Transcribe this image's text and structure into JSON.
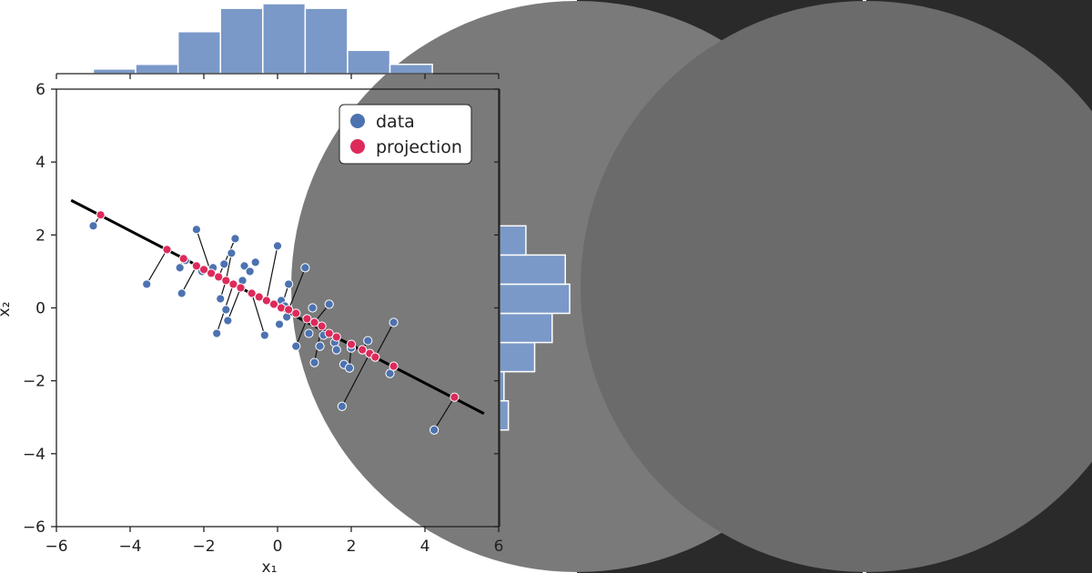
{
  "chart_data": {
    "type": "scatter",
    "xlabel": "x₁",
    "ylabel": "x₂",
    "xlim": [
      -6,
      6
    ],
    "ylim": [
      -6,
      6
    ],
    "xticks": [
      -6,
      -4,
      -2,
      0,
      2,
      4,
      6
    ],
    "yticks": [
      -6,
      -4,
      -2,
      0,
      2,
      4,
      6
    ],
    "tick_labels": [
      "−6",
      "−4",
      "−2",
      "0",
      "2",
      "4",
      "6"
    ],
    "regression_line": {
      "x": [
        -5.6,
        5.6
      ],
      "y": [
        2.95,
        -2.9
      ]
    },
    "legend": {
      "position": "top-right",
      "entries": [
        {
          "label": "data",
          "color": "#4c72b0"
        },
        {
          "label": "projection",
          "color": "#dd2a5b"
        }
      ]
    },
    "series": [
      {
        "name": "data",
        "color": "#4c72b0",
        "points": [
          [
            -5.0,
            2.25
          ],
          [
            -3.55,
            0.65
          ],
          [
            -2.65,
            1.1
          ],
          [
            -2.6,
            0.4
          ],
          [
            -2.5,
            1.3
          ],
          [
            -2.2,
            2.15
          ],
          [
            -2.05,
            1.0
          ],
          [
            -1.75,
            1.1
          ],
          [
            -1.65,
            -0.7
          ],
          [
            -1.55,
            0.25
          ],
          [
            -1.45,
            1.2
          ],
          [
            -1.4,
            -0.05
          ],
          [
            -1.35,
            -0.35
          ],
          [
            -1.25,
            1.5
          ],
          [
            -1.15,
            1.9
          ],
          [
            -0.95,
            0.75
          ],
          [
            -0.9,
            1.15
          ],
          [
            -0.75,
            1.0
          ],
          [
            -0.6,
            1.25
          ],
          [
            -0.35,
            -0.75
          ],
          [
            0.0,
            1.7
          ],
          [
            0.05,
            -0.45
          ],
          [
            0.1,
            0.2
          ],
          [
            0.2,
            0.05
          ],
          [
            0.25,
            -0.25
          ],
          [
            0.3,
            0.65
          ],
          [
            0.5,
            -1.05
          ],
          [
            0.75,
            1.1
          ],
          [
            0.85,
            -0.7
          ],
          [
            0.95,
            0.0
          ],
          [
            1.0,
            -1.5
          ],
          [
            1.15,
            -1.05
          ],
          [
            1.25,
            -0.75
          ],
          [
            1.4,
            0.1
          ],
          [
            1.55,
            -0.95
          ],
          [
            1.6,
            -1.15
          ],
          [
            1.75,
            -2.7
          ],
          [
            1.8,
            -1.55
          ],
          [
            1.95,
            -1.65
          ],
          [
            2.0,
            -1.1
          ],
          [
            2.45,
            -0.9
          ],
          [
            3.05,
            -1.8
          ],
          [
            3.15,
            -0.4
          ],
          [
            4.25,
            -3.35
          ]
        ]
      },
      {
        "name": "projection",
        "color": "#dd2a5b",
        "points": [
          [
            -4.8,
            2.55
          ],
          [
            -3.0,
            1.6
          ],
          [
            -2.55,
            1.35
          ],
          [
            -2.2,
            1.15
          ],
          [
            -2.0,
            1.05
          ],
          [
            -1.8,
            0.95
          ],
          [
            -1.6,
            0.85
          ],
          [
            -1.4,
            0.75
          ],
          [
            -1.2,
            0.65
          ],
          [
            -1.0,
            0.55
          ],
          [
            -0.7,
            0.4
          ],
          [
            -0.5,
            0.3
          ],
          [
            -0.3,
            0.2
          ],
          [
            -0.1,
            0.1
          ],
          [
            0.1,
            0.0
          ],
          [
            0.3,
            -0.05
          ],
          [
            0.5,
            -0.15
          ],
          [
            0.8,
            -0.3
          ],
          [
            1.0,
            -0.4
          ],
          [
            1.2,
            -0.5
          ],
          [
            1.4,
            -0.7
          ],
          [
            1.6,
            -0.8
          ],
          [
            2.0,
            -1.0
          ],
          [
            2.3,
            -1.15
          ],
          [
            2.5,
            -1.25
          ],
          [
            2.65,
            -1.35
          ],
          [
            3.15,
            -1.6
          ],
          [
            4.8,
            -2.45
          ]
        ]
      }
    ],
    "projection_links": [
      [
        [
          -5.0,
          2.25
        ],
        [
          -4.8,
          2.55
        ]
      ],
      [
        [
          -3.55,
          0.65
        ],
        [
          -3.0,
          1.6
        ]
      ],
      [
        [
          -2.6,
          0.4
        ],
        [
          -2.2,
          1.15
        ]
      ],
      [
        [
          -2.65,
          1.1
        ],
        [
          -2.55,
          1.35
        ]
      ],
      [
        [
          -2.2,
          2.15
        ],
        [
          -1.8,
          0.95
        ]
      ],
      [
        [
          -1.65,
          -0.7
        ],
        [
          -1.2,
          0.65
        ]
      ],
      [
        [
          -1.55,
          0.25
        ],
        [
          -1.4,
          0.75
        ]
      ],
      [
        [
          -1.35,
          -0.35
        ],
        [
          -1.0,
          0.55
        ]
      ],
      [
        [
          -1.15,
          1.9
        ],
        [
          -1.6,
          0.85
        ]
      ],
      [
        [
          -1.25,
          1.5
        ],
        [
          -1.4,
          0.75
        ]
      ],
      [
        [
          -0.35,
          -0.75
        ],
        [
          -0.7,
          0.4
        ]
      ],
      [
        [
          0.0,
          1.7
        ],
        [
          -0.3,
          0.2
        ]
      ],
      [
        [
          0.3,
          0.65
        ],
        [
          0.1,
          0.0
        ]
      ],
      [
        [
          0.5,
          -1.05
        ],
        [
          0.8,
          -0.3
        ]
      ],
      [
        [
          0.75,
          1.1
        ],
        [
          0.3,
          -0.05
        ]
      ],
      [
        [
          1.0,
          -1.5
        ],
        [
          1.2,
          -0.5
        ]
      ],
      [
        [
          1.25,
          -0.75
        ],
        [
          1.4,
          -0.7
        ]
      ],
      [
        [
          1.4,
          0.1
        ],
        [
          1.0,
          -0.4
        ]
      ],
      [
        [
          1.75,
          -2.7
        ],
        [
          2.5,
          -1.25
        ]
      ],
      [
        [
          1.95,
          -1.65
        ],
        [
          2.0,
          -1.0
        ]
      ],
      [
        [
          2.45,
          -0.9
        ],
        [
          2.3,
          -1.15
        ]
      ],
      [
        [
          3.05,
          -1.8
        ],
        [
          3.15,
          -1.6
        ]
      ],
      [
        [
          3.15,
          -0.4
        ],
        [
          2.65,
          -1.35
        ]
      ],
      [
        [
          4.25,
          -3.35
        ],
        [
          4.8,
          -2.45
        ]
      ]
    ],
    "x_marginal_histogram": {
      "bin_edges": [
        -5.0,
        -3.85,
        -2.7,
        -1.55,
        -0.4,
        0.75,
        1.9,
        3.05,
        4.2
      ],
      "counts": [
        1,
        2,
        9,
        14,
        15,
        14,
        5,
        2
      ]
    },
    "y_marginal_histogram": {
      "bin_edges": [
        -3.35,
        -2.55,
        -1.75,
        -0.95,
        -0.15,
        0.65,
        1.45,
        2.25
      ],
      "counts": [
        2,
        1,
        8,
        12,
        16,
        15,
        6
      ]
    }
  },
  "right_panels": [
    {
      "name": "panel-1",
      "background": "#2a2a2a",
      "shape_color": "#7a7a7a"
    },
    {
      "name": "panel-2",
      "background": "#2a2a2a",
      "shape_color": "#6b6b6b"
    }
  ]
}
